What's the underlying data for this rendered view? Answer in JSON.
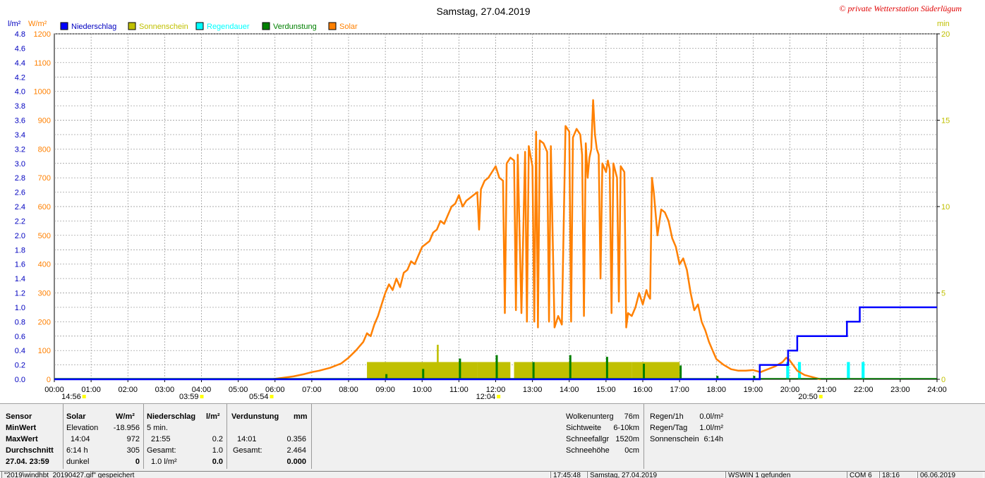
{
  "chart_data": {
    "type": "line",
    "title": "Samstag, 27.04.2019",
    "watermark": "© private Wetterstation Süderlügum",
    "left_axis_label": "l/m²",
    "left_axis_label2": "W/m²",
    "right_axis_label": "min",
    "x_ticks": [
      "00:00",
      "01:00",
      "02:00",
      "03:00",
      "04:00",
      "05:00",
      "06:00",
      "07:00",
      "08:00",
      "09:00",
      "10:00",
      "11:00",
      "12:00",
      "13:00",
      "14:00",
      "15:00",
      "16:00",
      "17:00",
      "18:00",
      "19:00",
      "20:00",
      "21:00",
      "22:00",
      "23:00",
      "24:00"
    ],
    "y_rain_ticks": [
      "0.0",
      "0.2",
      "0.4",
      "0.6",
      "0.8",
      "1.0",
      "1.2",
      "1.4",
      "1.6",
      "1.8",
      "2.0",
      "2.2",
      "2.4",
      "2.6",
      "2.8",
      "3.0",
      "3.2",
      "3.4",
      "3.6",
      "3.8",
      "4.0",
      "4.2",
      "4.4",
      "4.6",
      "4.8"
    ],
    "y_solar_ticks": [
      "0",
      "100",
      "200",
      "300",
      "400",
      "500",
      "600",
      "700",
      "800",
      "900",
      "1000",
      "1100",
      "1200"
    ],
    "y_min_ticks": [
      "0",
      "5",
      "10",
      "15",
      "20"
    ],
    "ylim_solar": [
      0,
      1200
    ],
    "ylim_rain": [
      0,
      4.8
    ],
    "ylim_min": [
      0,
      20
    ],
    "xlim_hours": [
      0,
      24
    ],
    "legend_position": "top-left",
    "legend": [
      {
        "name": "Niederschlag",
        "color": "#0000ff"
      },
      {
        "name": "Sonnenschein",
        "color": "#c0c000"
      },
      {
        "name": "Regendauer",
        "color": "#00ffff"
      },
      {
        "name": "Verdunstung",
        "color": "#008000"
      },
      {
        "name": "Solar",
        "color": "#ff8000"
      }
    ],
    "markers": [
      {
        "label": "14:56",
        "hour": 0.8
      },
      {
        "label": "03:59",
        "hour": 4.0
      },
      {
        "label": "05:54",
        "hour": 5.9
      },
      {
        "label": "12:04",
        "hour": 12.07
      },
      {
        "label": "20:50",
        "hour": 20.83
      }
    ],
    "series": [
      {
        "name": "Solar",
        "color": "#ff8000",
        "unit": "W/m²",
        "points": [
          [
            5.9,
            0
          ],
          [
            6.2,
            5
          ],
          [
            6.5,
            10
          ],
          [
            6.8,
            18
          ],
          [
            7.0,
            25
          ],
          [
            7.2,
            30
          ],
          [
            7.5,
            40
          ],
          [
            7.8,
            55
          ],
          [
            8.0,
            75
          ],
          [
            8.2,
            100
          ],
          [
            8.4,
            130
          ],
          [
            8.5,
            160
          ],
          [
            8.6,
            150
          ],
          [
            8.7,
            190
          ],
          [
            8.8,
            220
          ],
          [
            8.9,
            260
          ],
          [
            9.0,
            300
          ],
          [
            9.1,
            330
          ],
          [
            9.2,
            310
          ],
          [
            9.3,
            350
          ],
          [
            9.4,
            320
          ],
          [
            9.5,
            370
          ],
          [
            9.6,
            380
          ],
          [
            9.7,
            410
          ],
          [
            9.8,
            400
          ],
          [
            9.9,
            430
          ],
          [
            10.0,
            460
          ],
          [
            10.1,
            470
          ],
          [
            10.2,
            480
          ],
          [
            10.3,
            510
          ],
          [
            10.4,
            520
          ],
          [
            10.5,
            550
          ],
          [
            10.6,
            540
          ],
          [
            10.7,
            570
          ],
          [
            10.8,
            600
          ],
          [
            10.9,
            610
          ],
          [
            11.0,
            640
          ],
          [
            11.1,
            600
          ],
          [
            11.2,
            620
          ],
          [
            11.3,
            630
          ],
          [
            11.4,
            640
          ],
          [
            11.5,
            650
          ],
          [
            11.55,
            520
          ],
          [
            11.6,
            660
          ],
          [
            11.7,
            690
          ],
          [
            11.8,
            700
          ],
          [
            11.9,
            720
          ],
          [
            12.0,
            740
          ],
          [
            12.1,
            700
          ],
          [
            12.2,
            690
          ],
          [
            12.25,
            230
          ],
          [
            12.3,
            750
          ],
          [
            12.4,
            770
          ],
          [
            12.5,
            760
          ],
          [
            12.55,
            240
          ],
          [
            12.6,
            780
          ],
          [
            12.7,
            230
          ],
          [
            12.8,
            790
          ],
          [
            12.85,
            200
          ],
          [
            12.9,
            810
          ],
          [
            13.0,
            740
          ],
          [
            13.05,
            200
          ],
          [
            13.1,
            860
          ],
          [
            13.15,
            180
          ],
          [
            13.2,
            830
          ],
          [
            13.3,
            820
          ],
          [
            13.4,
            790
          ],
          [
            13.45,
            200
          ],
          [
            13.5,
            810
          ],
          [
            13.6,
            180
          ],
          [
            13.7,
            220
          ],
          [
            13.8,
            190
          ],
          [
            13.9,
            880
          ],
          [
            14.0,
            860
          ],
          [
            14.05,
            200
          ],
          [
            14.1,
            840
          ],
          [
            14.2,
            870
          ],
          [
            14.3,
            850
          ],
          [
            14.35,
            780
          ],
          [
            14.4,
            220
          ],
          [
            14.45,
            820
          ],
          [
            14.5,
            700
          ],
          [
            14.55,
            770
          ],
          [
            14.6,
            800
          ],
          [
            14.65,
            970
          ],
          [
            14.7,
            850
          ],
          [
            14.75,
            800
          ],
          [
            14.8,
            780
          ],
          [
            14.85,
            350
          ],
          [
            14.9,
            750
          ],
          [
            15.0,
            720
          ],
          [
            15.05,
            760
          ],
          [
            15.1,
            730
          ],
          [
            15.15,
            230
          ],
          [
            15.2,
            750
          ],
          [
            15.3,
            700
          ],
          [
            15.35,
            270
          ],
          [
            15.4,
            740
          ],
          [
            15.5,
            720
          ],
          [
            15.55,
            180
          ],
          [
            15.6,
            230
          ],
          [
            15.7,
            220
          ],
          [
            15.8,
            250
          ],
          [
            15.9,
            300
          ],
          [
            16.0,
            260
          ],
          [
            16.1,
            310
          ],
          [
            16.15,
            290
          ],
          [
            16.2,
            280
          ],
          [
            16.25,
            700
          ],
          [
            16.3,
            650
          ],
          [
            16.4,
            500
          ],
          [
            16.5,
            590
          ],
          [
            16.6,
            580
          ],
          [
            16.7,
            550
          ],
          [
            16.8,
            490
          ],
          [
            16.9,
            460
          ],
          [
            17.0,
            400
          ],
          [
            17.1,
            420
          ],
          [
            17.2,
            380
          ],
          [
            17.3,
            300
          ],
          [
            17.4,
            240
          ],
          [
            17.5,
            260
          ],
          [
            17.6,
            200
          ],
          [
            17.7,
            170
          ],
          [
            17.8,
            130
          ],
          [
            17.9,
            100
          ],
          [
            18.0,
            70
          ],
          [
            18.2,
            50
          ],
          [
            18.4,
            35
          ],
          [
            18.6,
            30
          ],
          [
            18.8,
            30
          ],
          [
            19.0,
            32
          ],
          [
            19.2,
            25
          ],
          [
            19.4,
            35
          ],
          [
            19.6,
            45
          ],
          [
            19.8,
            60
          ],
          [
            19.9,
            75
          ],
          [
            20.0,
            65
          ],
          [
            20.2,
            30
          ],
          [
            20.4,
            15
          ],
          [
            20.6,
            8
          ],
          [
            20.83,
            0
          ]
        ]
      },
      {
        "name": "Niederschlag",
        "color": "#0000ff",
        "unit": "l/m²",
        "points": [
          [
            0,
            0
          ],
          [
            19.18,
            0
          ],
          [
            19.18,
            0.2
          ],
          [
            19.95,
            0.2
          ],
          [
            19.95,
            0.4
          ],
          [
            20.2,
            0.4
          ],
          [
            20.2,
            0.6
          ],
          [
            21.55,
            0.6
          ],
          [
            21.55,
            0.8
          ],
          [
            21.9,
            0.8
          ],
          [
            21.9,
            1.0
          ],
          [
            24,
            1.0
          ]
        ]
      },
      {
        "name": "Sonnenschein",
        "color": "#c0c000",
        "unit": "min",
        "bars": [
          [
            8.5,
            11.5,
            1
          ],
          [
            10.4,
            10.45,
            2
          ],
          [
            11.5,
            12.4,
            1
          ],
          [
            12.5,
            13.0,
            1
          ],
          [
            13.0,
            15.7,
            1
          ],
          [
            15.7,
            17.0,
            1
          ]
        ]
      },
      {
        "name": "Regendauer",
        "color": "#00ffff",
        "unit": "min",
        "bars": [
          [
            19.9,
            19.98,
            1
          ],
          [
            20.22,
            20.3,
            1
          ],
          [
            21.55,
            21.63,
            1
          ],
          [
            21.95,
            22.03,
            1
          ]
        ]
      },
      {
        "name": "Verdunstung",
        "color": "#008000",
        "unit": "min",
        "bars": [
          [
            9.0,
            9.05,
            0.3
          ],
          [
            10.0,
            10.05,
            0.6
          ],
          [
            11.0,
            11.05,
            1.2
          ],
          [
            12.0,
            12.05,
            1.4
          ],
          [
            13.0,
            13.05,
            1.0
          ],
          [
            14.0,
            14.05,
            1.4
          ],
          [
            15.0,
            15.05,
            1.3
          ],
          [
            16.0,
            16.05,
            0.9
          ],
          [
            17.0,
            17.05,
            0.8
          ],
          [
            18.0,
            18.05,
            0.2
          ],
          [
            19.0,
            19.05,
            0.2
          ]
        ]
      }
    ]
  },
  "panel": {
    "sensor": {
      "h": "Sensor",
      "min": "MinWert",
      "max": "MaxWert",
      "avg": "Durchschnitt",
      "date": "27.04. 23:59"
    },
    "solar": {
      "h": "Solar",
      "unit": "W/m²",
      "r1a": "Elevation",
      "r1b": "-18.956",
      "r2a": "14:04",
      "r2b": "972",
      "r3a": "6:14 h",
      "r3b": "305",
      "r4a": "dunkel",
      "r4b": "0"
    },
    "rain": {
      "h": "Niederschlag",
      "unit": "l/m²",
      "r1a": "5 min.",
      "r2a": "21:55",
      "r2b": "0.2",
      "r3a": "Gesamt:",
      "r3b": "1.0",
      "r4a": "1.0 l/m²",
      "r4b": "0.0"
    },
    "evap": {
      "h": "Verdunstung",
      "unit": "mm",
      "r2a": "14:01",
      "r2b": "0.356",
      "r3a": "Gesamt:",
      "r3b": "2.464",
      "r4b": "0.000"
    },
    "extra1": {
      "r1a": "Wolkenunterg",
      "r1b": "76m",
      "r2a": "Sichtweite",
      "r2b": "6-10km",
      "r3a": "Schneefallgr",
      "r3b": "1520m",
      "r4a": "Schneehöhe",
      "r4b": "0cm"
    },
    "extra2": {
      "r1a": "Regen/1h",
      "r1b": "0.0l/m²",
      "r2a": "Regen/Tag",
      "r2b": "1.0l/m²",
      "r3a": "Sonnenschein",
      "r3b": "6:14h"
    }
  },
  "status": {
    "file": "\"2019\\windhbt_20190427.gif\" gespeichert",
    "time": "17:45:48",
    "date": "Samstag, 27.04.2019",
    "wswin": "WSWIN 1 gefunden",
    "com": "COM 6",
    "clock": "18:16",
    "today": "06.06.2019"
  }
}
